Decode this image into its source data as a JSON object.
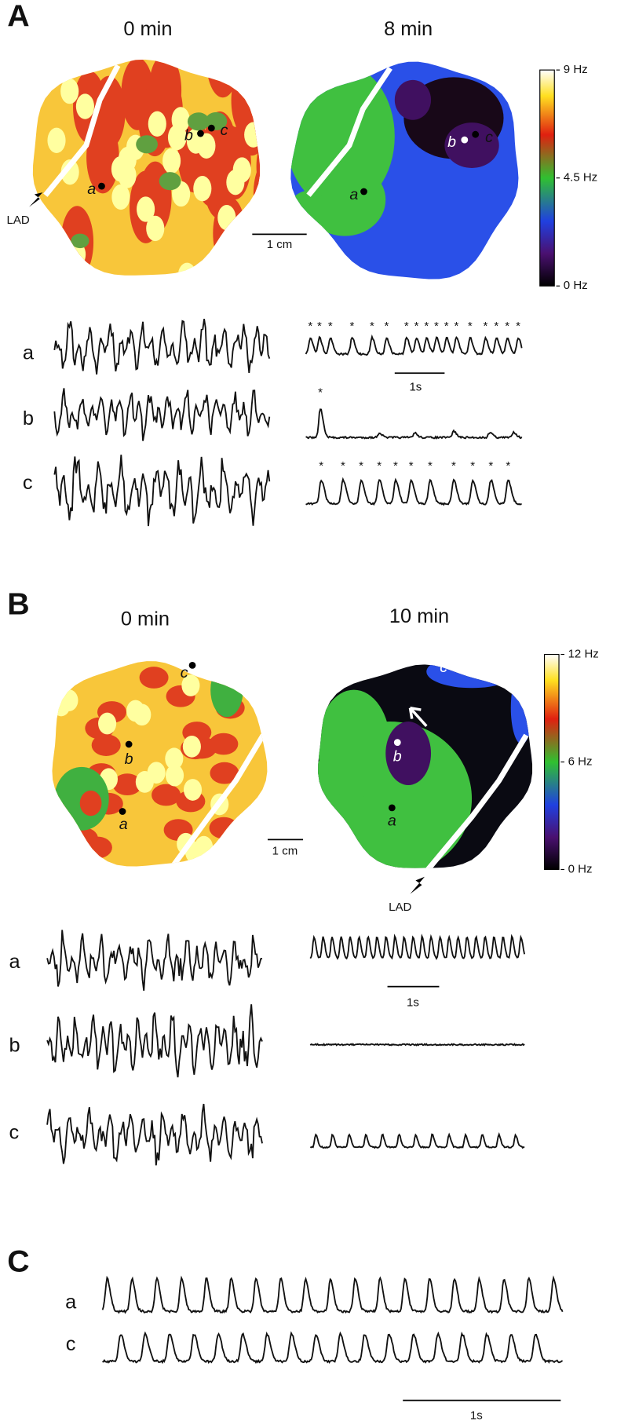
{
  "A": {
    "label": "A",
    "left_title": "0 min",
    "right_title": "8 min",
    "lad": "LAD",
    "scale_bar": "1 cm",
    "colorbar_ticks": [
      "9 Hz",
      "4.5 Hz",
      "0 Hz"
    ],
    "map_points": [
      "a",
      "b",
      "c"
    ],
    "trace_labels": [
      "a",
      "b",
      "c"
    ],
    "time_bar": "1s",
    "peak_marker": "*"
  },
  "B": {
    "label": "B",
    "left_title": "0 min",
    "right_title": "10 min",
    "lad": "LAD",
    "scale_bar": "1 cm",
    "colorbar_ticks": [
      "12 Hz",
      "6 Hz",
      "0 Hz"
    ],
    "map_points": [
      "a",
      "b",
      "c"
    ],
    "trace_labels": [
      "a",
      "b",
      "c"
    ],
    "time_bar": "1s"
  },
  "C": {
    "label": "C",
    "trace_labels": [
      "a",
      "c"
    ],
    "time_bar": "1s"
  }
}
